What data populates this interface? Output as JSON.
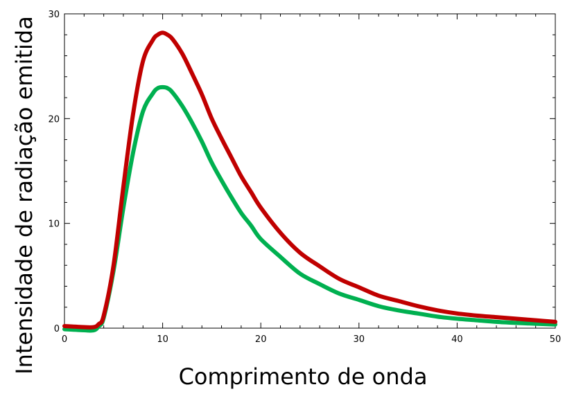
{
  "chart_data": {
    "type": "line",
    "title": "",
    "xlabel": "Comprimento de onda",
    "ylabel": "Intensidade de radiação emitida",
    "xlim": [
      0,
      50
    ],
    "ylim": [
      0,
      30
    ],
    "x_ticks": [
      "0",
      "10",
      "20",
      "30",
      "40",
      "50"
    ],
    "y_ticks": [
      "0",
      "10",
      "20",
      "30"
    ],
    "grid": false,
    "legend": "none",
    "series": [
      {
        "color": "#c00000",
        "x": [
          0,
          2,
          3,
          3.5,
          4,
          5,
          6,
          7,
          8,
          9,
          9.5,
          10,
          10.5,
          11,
          12,
          13,
          14,
          15,
          16,
          17,
          18,
          19,
          20,
          22,
          24,
          26,
          28,
          30,
          32,
          34,
          36,
          38,
          40,
          42,
          44,
          46,
          48,
          50
        ],
        "y": [
          0.2,
          0.1,
          0.1,
          0.4,
          1.2,
          6,
          13.5,
          20.5,
          25.5,
          27.5,
          28.0,
          28.2,
          28.0,
          27.6,
          26.2,
          24.3,
          22.3,
          20.0,
          18.1,
          16.3,
          14.5,
          13.0,
          11.5,
          9.1,
          7.2,
          5.9,
          4.7,
          3.9,
          3.1,
          2.6,
          2.1,
          1.7,
          1.4,
          1.2,
          1.05,
          0.9,
          0.75,
          0.6
        ]
      },
      {
        "color": "#00b050",
        "x": [
          0,
          2,
          3,
          3.5,
          4,
          5,
          6,
          7,
          8,
          9,
          9.5,
          10,
          10.5,
          11,
          12,
          13,
          14,
          15,
          16,
          17,
          18,
          19,
          20,
          22,
          24,
          26,
          28,
          30,
          32,
          34,
          36,
          38,
          40,
          42,
          44,
          46,
          48,
          50
        ],
        "y": [
          -0.1,
          -0.2,
          -0.2,
          0.2,
          1.0,
          5.5,
          11.5,
          16.8,
          20.7,
          22.4,
          22.9,
          23.0,
          22.9,
          22.5,
          21.2,
          19.6,
          17.8,
          15.8,
          14.1,
          12.5,
          11.0,
          9.8,
          8.5,
          6.8,
          5.2,
          4.2,
          3.3,
          2.7,
          2.1,
          1.7,
          1.4,
          1.1,
          0.9,
          0.75,
          0.6,
          0.5,
          0.42,
          0.35
        ]
      }
    ]
  }
}
